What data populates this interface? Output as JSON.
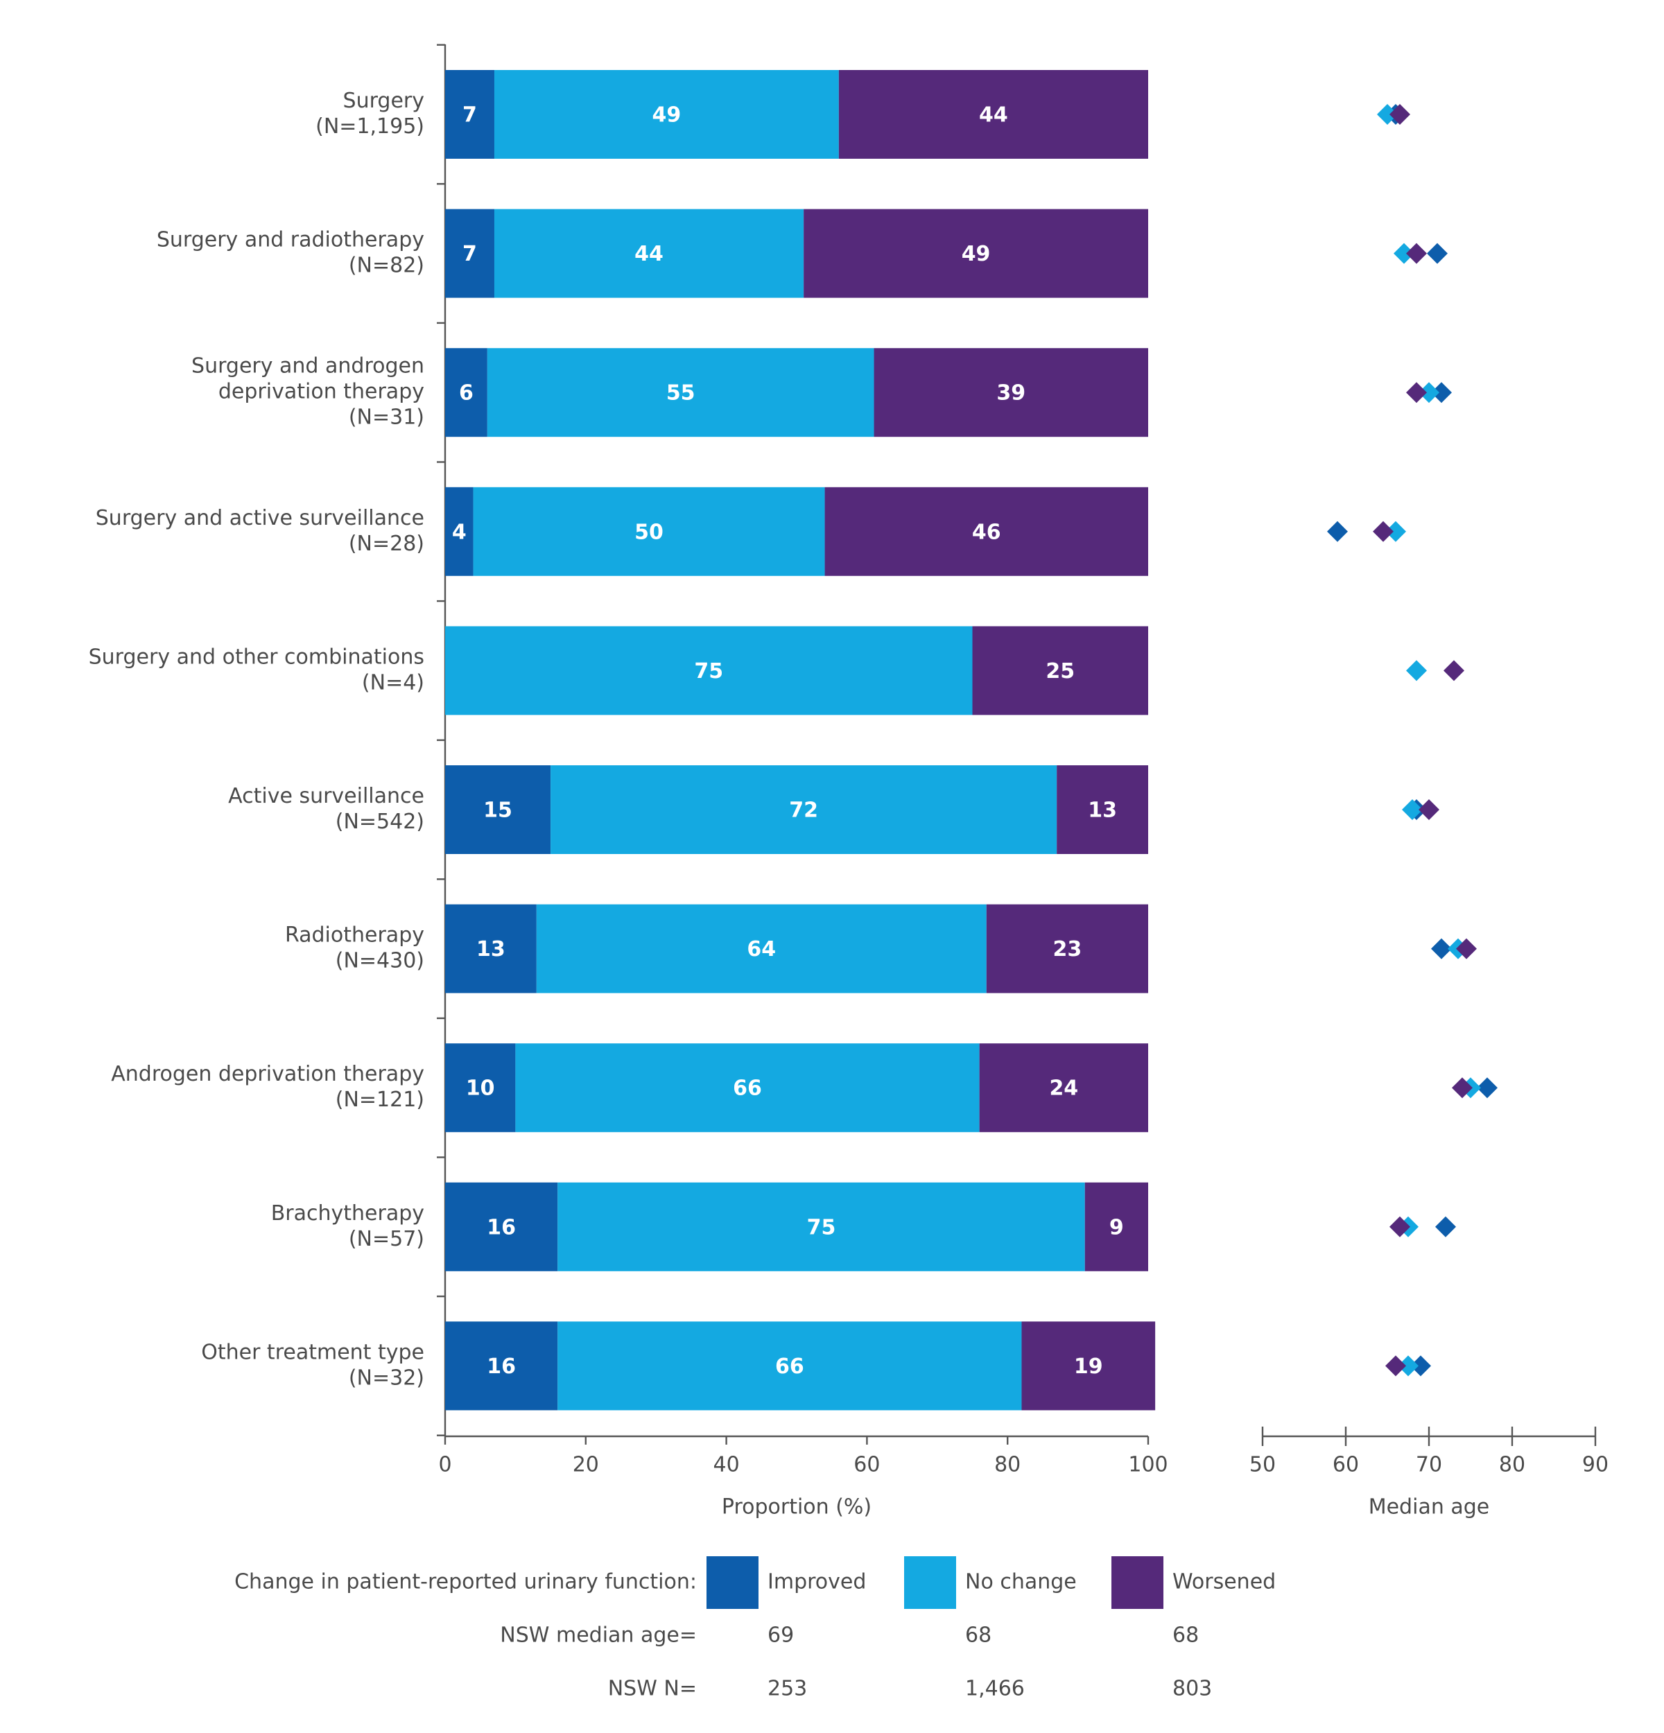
{
  "chart_data": [
    {
      "type": "bar",
      "orientation": "horizontal",
      "stacked": true,
      "categories": [
        [
          "Surgery",
          "(N=1,195)"
        ],
        [
          "Surgery and radiotherapy",
          "(N=82)"
        ],
        [
          "Surgery and androgen",
          "deprivation therapy",
          "(N=31)"
        ],
        [
          "Surgery and active surveillance",
          "(N=28)"
        ],
        [
          "Surgery and other combinations",
          "(N=4)"
        ],
        [
          "Active surveillance",
          "(N=542)"
        ],
        [
          "Radiotherapy",
          "(N=430)"
        ],
        [
          "Androgen deprivation therapy",
          "(N=121)"
        ],
        [
          "Brachytherapy",
          "(N=57)"
        ],
        [
          "Other treatment type",
          "(N=32)"
        ]
      ],
      "series": [
        {
          "name": "Improved",
          "color": "#0d5dab",
          "values": [
            7,
            7,
            6,
            4,
            null,
            15,
            13,
            10,
            16,
            16
          ]
        },
        {
          "name": "No change",
          "color": "#14a9e1",
          "values": [
            49,
            44,
            55,
            50,
            75,
            72,
            64,
            66,
            75,
            66
          ]
        },
        {
          "name": "Worsened",
          "color": "#55297a",
          "values": [
            44,
            49,
            39,
            46,
            25,
            13,
            23,
            24,
            9,
            19
          ]
        }
      ],
      "xlim": [
        0,
        100
      ],
      "xticks": [
        0,
        20,
        40,
        60,
        80,
        100
      ],
      "xlabel": "Proportion (%)",
      "legend_title": "Change in patient-reported urinary function:",
      "summary": [
        {
          "label": "NSW median age=",
          "values": [
            69,
            68,
            68
          ]
        },
        {
          "label": "NSW N=",
          "values": [
            253,
            {
              "value": 1466,
              "label": "1,466"
            },
            803
          ]
        }
      ]
    },
    {
      "type": "scatter",
      "series": [
        {
          "name": "Improved",
          "color": "#0d5dab",
          "values": [
            66,
            71,
            71.5,
            59,
            null,
            68.5,
            71.5,
            77,
            72,
            69
          ]
        },
        {
          "name": "No change",
          "color": "#14a9e1",
          "values": [
            65,
            67,
            70,
            66,
            68.5,
            68,
            73.5,
            75,
            67.5,
            67.5
          ]
        },
        {
          "name": "Worsened",
          "color": "#55297a",
          "values": [
            66.5,
            68.5,
            68.5,
            64.5,
            73,
            70,
            74.5,
            74,
            66.5,
            66
          ]
        }
      ],
      "xlim": [
        50,
        90
      ],
      "xticks": [
        50,
        60,
        70,
        80,
        90
      ],
      "xlabel": "Median age"
    }
  ]
}
